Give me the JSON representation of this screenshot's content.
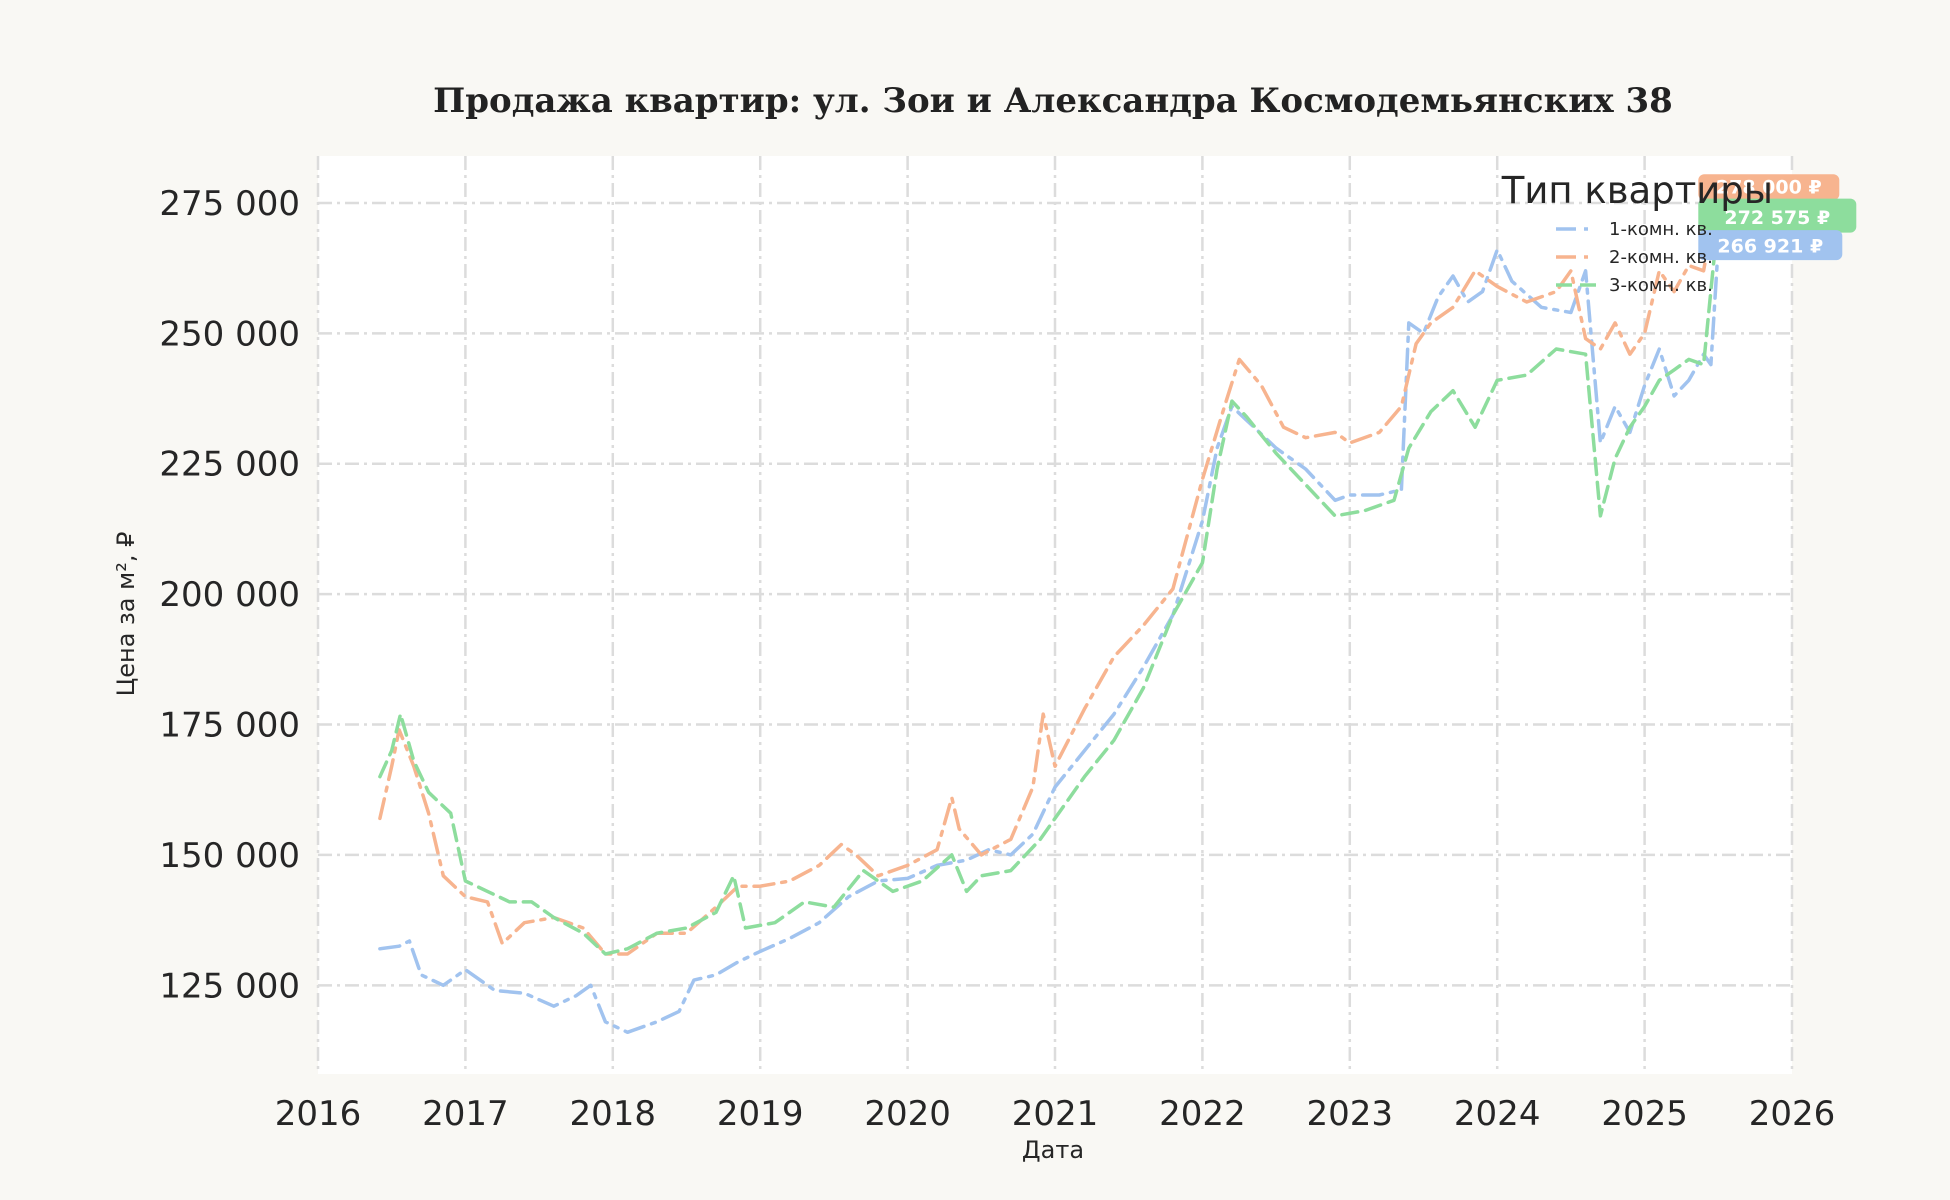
{
  "colors": {
    "background": "#f9f8f4",
    "plot_background": "#ffffff",
    "grid": "#dcdcdc",
    "series_1": "#a1c3ef",
    "series_2": "#f7b48f",
    "series_3": "#8ddd9d"
  },
  "chart_data": {
    "type": "line",
    "title": "Продажа квартир: ул. Зои и Александра Космодемьянских 38",
    "xlabel": "Дата",
    "ylabel": "Цена за м², ₽",
    "xlim": [
      2016.0,
      2026.0
    ],
    "ylim": [
      108000,
      284000
    ],
    "x_ticks": [
      2016,
      2017,
      2018,
      2019,
      2020,
      2021,
      2022,
      2023,
      2024,
      2025,
      2026
    ],
    "x_tick_labels": [
      "2016",
      "2017",
      "2018",
      "2019",
      "2020",
      "2021",
      "2022",
      "2023",
      "2024",
      "2025",
      "2026"
    ],
    "y_ticks": [
      125000,
      150000,
      175000,
      200000,
      225000,
      250000,
      275000
    ],
    "y_tick_labels": [
      "125 000",
      "150 000",
      "175 000",
      "200 000",
      "225 000",
      "250 000",
      "275 000"
    ],
    "grid": true,
    "legend": {
      "title": "Тип квартиры",
      "position": "top-right"
    },
    "series": [
      {
        "name": "1-комн. кв.",
        "color": "#a1c3ef",
        "dash": "dashdot",
        "end_label": "266 921 ₽",
        "end_value": 266921,
        "x": [
          2016.42,
          2016.55,
          2016.62,
          2016.7,
          2016.85,
          2017.0,
          2017.2,
          2017.4,
          2017.6,
          2017.75,
          2017.85,
          2017.95,
          2018.1,
          2018.3,
          2018.45,
          2018.55,
          2018.7,
          2018.85,
          2019.0,
          2019.2,
          2019.4,
          2019.6,
          2019.8,
          2020.0,
          2020.2,
          2020.4,
          2020.55,
          2020.7,
          2020.85,
          2021.0,
          2021.2,
          2021.4,
          2021.6,
          2021.8,
          2022.0,
          2022.1,
          2022.2,
          2022.35,
          2022.5,
          2022.7,
          2022.9,
          2023.0,
          2023.2,
          2023.35,
          2023.4,
          2023.5,
          2023.6,
          2023.7,
          2023.8,
          2023.9,
          2024.0,
          2024.1,
          2024.3,
          2024.5,
          2024.6,
          2024.7,
          2024.8,
          2024.9,
          2025.0,
          2025.1,
          2025.2,
          2025.3,
          2025.4,
          2025.45,
          2025.5
        ],
        "y": [
          132000,
          132500,
          133500,
          127000,
          125000,
          128000,
          124000,
          123500,
          121000,
          123000,
          125000,
          118000,
          116000,
          118000,
          120000,
          126000,
          127000,
          129500,
          131500,
          134000,
          137000,
          142000,
          145000,
          145500,
          148000,
          149000,
          151000,
          150000,
          154000,
          163000,
          170000,
          177000,
          186000,
          196000,
          214000,
          228000,
          236000,
          232000,
          228000,
          224000,
          218000,
          219000,
          219000,
          220000,
          252000,
          250000,
          257000,
          261000,
          256000,
          258000,
          266000,
          260000,
          255000,
          254000,
          262000,
          229000,
          236000,
          231000,
          240000,
          247000,
          238000,
          241000,
          246000,
          244000,
          266921
        ]
      },
      {
        "name": "2-комн. кв.",
        "color": "#f7b48f",
        "dash": "dashdot",
        "end_label": "278 000 ₽",
        "end_value": 278000,
        "x": [
          2016.42,
          2016.5,
          2016.55,
          2016.65,
          2016.75,
          2016.85,
          2017.0,
          2017.15,
          2017.25,
          2017.4,
          2017.6,
          2017.8,
          2017.95,
          2018.1,
          2018.3,
          2018.5,
          2018.7,
          2018.85,
          2019.0,
          2019.2,
          2019.4,
          2019.55,
          2019.65,
          2019.8,
          2020.0,
          2020.2,
          2020.3,
          2020.35,
          2020.5,
          2020.7,
          2020.85,
          2020.92,
          2021.0,
          2021.2,
          2021.4,
          2021.6,
          2021.8,
          2022.0,
          2022.15,
          2022.25,
          2022.4,
          2022.55,
          2022.7,
          2022.9,
          2023.0,
          2023.2,
          2023.35,
          2023.45,
          2023.55,
          2023.7,
          2023.85,
          2024.0,
          2024.2,
          2024.4,
          2024.5,
          2024.6,
          2024.7,
          2024.8,
          2024.9,
          2025.0,
          2025.1,
          2025.2,
          2025.3,
          2025.4,
          2025.5
        ],
        "y": [
          157000,
          167000,
          174000,
          167000,
          158000,
          146000,
          142000,
          141000,
          133000,
          137000,
          138000,
          136000,
          131000,
          131000,
          135000,
          135000,
          140000,
          144000,
          144000,
          145000,
          148000,
          152000,
          150000,
          146000,
          148000,
          151000,
          161000,
          155000,
          150000,
          153000,
          163000,
          177000,
          167000,
          178000,
          188000,
          194000,
          201000,
          222000,
          236000,
          245000,
          240000,
          232000,
          230000,
          231000,
          229000,
          231000,
          236000,
          248000,
          252000,
          255000,
          262000,
          259000,
          256000,
          258000,
          262000,
          249000,
          247000,
          252000,
          246000,
          250000,
          262000,
          258000,
          263000,
          262000,
          278000
        ]
      },
      {
        "name": "3-комн. кв.",
        "color": "#8ddd9d",
        "dash": "dashed",
        "end_label": "272 575 ₽",
        "end_value": 272575,
        "x": [
          2016.42,
          2016.5,
          2016.56,
          2016.65,
          2016.75,
          2016.9,
          2017.0,
          2017.15,
          2017.3,
          2017.45,
          2017.6,
          2017.8,
          2017.95,
          2018.1,
          2018.3,
          2018.5,
          2018.7,
          2018.82,
          2018.9,
          2019.1,
          2019.3,
          2019.5,
          2019.7,
          2019.9,
          2020.1,
          2020.3,
          2020.4,
          2020.5,
          2020.7,
          2020.9,
          2021.0,
          2021.2,
          2021.4,
          2021.6,
          2021.8,
          2022.0,
          2022.1,
          2022.2,
          2022.3,
          2022.5,
          2022.7,
          2022.9,
          2023.1,
          2023.3,
          2023.4,
          2023.55,
          2023.7,
          2023.85,
          2024.0,
          2024.2,
          2024.4,
          2024.6,
          2024.7,
          2024.8,
          2024.9,
          2025.0,
          2025.1,
          2025.2,
          2025.3,
          2025.4,
          2025.5
        ],
        "y": [
          165000,
          170000,
          177000,
          168000,
          162000,
          158000,
          145000,
          143000,
          141000,
          141000,
          138000,
          135000,
          131000,
          132000,
          135000,
          136000,
          139000,
          146000,
          136000,
          137000,
          141000,
          140000,
          147000,
          143000,
          145000,
          150000,
          143000,
          146000,
          147000,
          153000,
          157000,
          165000,
          172000,
          182000,
          196000,
          206000,
          224000,
          237000,
          234000,
          227000,
          221000,
          215000,
          216000,
          218000,
          228000,
          235000,
          239000,
          232000,
          241000,
          242000,
          247000,
          246000,
          215000,
          226000,
          232000,
          236000,
          241000,
          243000,
          245000,
          244000,
          272575
        ]
      }
    ]
  }
}
